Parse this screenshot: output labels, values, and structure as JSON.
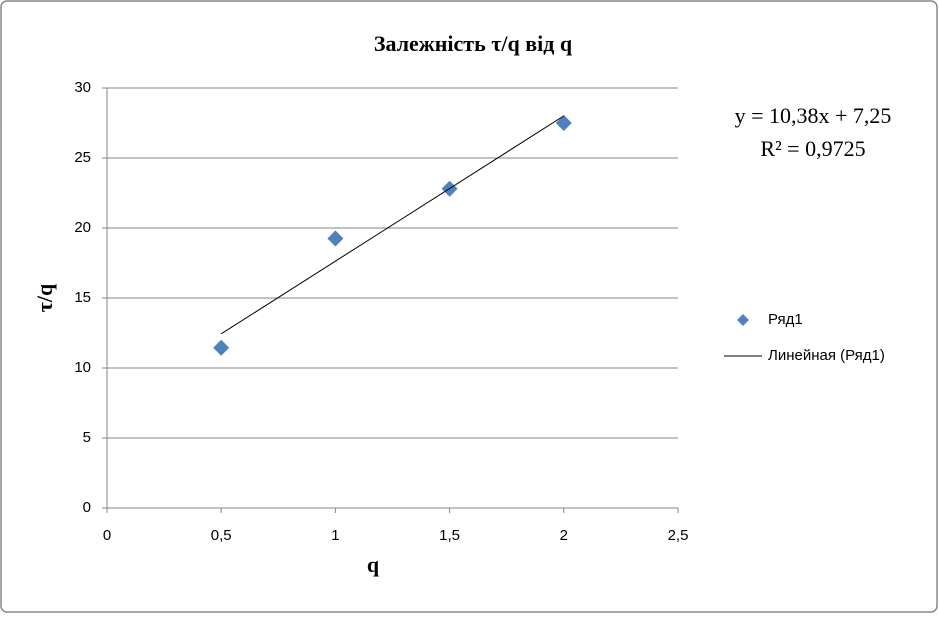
{
  "chart_data": {
    "type": "scatter",
    "title": "Залежність  τ/q  від q",
    "x_label": "q",
    "y_label": "τ/q",
    "series": [
      {
        "name": "Ряд1",
        "color": "#4f81bd",
        "mode": "markers",
        "x": [
          0.5,
          1,
          1.5,
          2
        ],
        "values": [
          11.45,
          19.25,
          22.8,
          27.5
        ]
      },
      {
        "name": "Линейная (Ряд1)",
        "color": "#000000",
        "mode": "line",
        "x": [
          0.5,
          2
        ],
        "values": [
          12.44,
          28.01
        ]
      }
    ],
    "annotations": [
      "y = 10,38x + 7,25",
      "R² = 0,9725"
    ],
    "xlim": [
      0,
      2.5
    ],
    "ylim": [
      0,
      30
    ],
    "xticks": [
      0,
      {
        "value": 0.5,
        "label": "0,5"
      },
      1,
      {
        "value": 1.5,
        "label": "1,5"
      },
      2,
      {
        "value": 2.5,
        "label": "2,5"
      }
    ],
    "yticks": [
      0,
      5,
      10,
      15,
      20,
      25,
      30
    ],
    "grid": true,
    "legend": "right"
  }
}
